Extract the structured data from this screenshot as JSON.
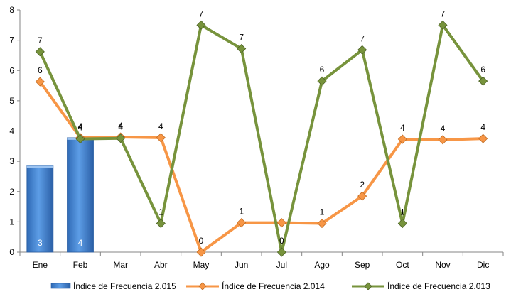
{
  "chart_data": {
    "type": "bar+line",
    "categories": [
      "Ene",
      "Feb",
      "Mar",
      "Abr",
      "May",
      "Jun",
      "Jul",
      "Ago",
      "Sep",
      "Oct",
      "Nov",
      "Dic"
    ],
    "ylim": [
      0,
      8
    ],
    "yticks": [
      "0",
      "1",
      "2",
      "3",
      "4",
      "5",
      "6",
      "7",
      "8"
    ],
    "grid": false,
    "legend_position": "bottom",
    "series": [
      {
        "name": "Índice de Frecuencia 2.015",
        "kind": "bar",
        "color": "#4f8fd6",
        "values": [
          2.85,
          3.78,
          null,
          null,
          null,
          null,
          null,
          null,
          null,
          null,
          null,
          null
        ],
        "labels": [
          "3",
          "4",
          "",
          "",
          "",
          "",
          "",
          "",
          "",
          "",
          "",
          ""
        ]
      },
      {
        "name": "Índice de Frecuencia 2.014",
        "kind": "line",
        "color": "#f79646",
        "values": [
          5.63,
          3.78,
          3.8,
          3.78,
          0.0,
          0.97,
          0.97,
          0.95,
          1.85,
          3.73,
          3.71,
          3.75
        ],
        "labels": [
          "6",
          "4",
          "4",
          "4",
          "0",
          "1",
          "",
          "1",
          "2",
          "4",
          "4",
          "4"
        ]
      },
      {
        "name": "Índice de Frecuencia 2.013",
        "kind": "line",
        "color": "#77933c",
        "values": [
          6.62,
          3.74,
          3.76,
          0.95,
          7.5,
          6.72,
          0.0,
          5.65,
          6.68,
          0.95,
          7.5,
          5.65
        ],
        "labels": [
          "7",
          "4",
          "4",
          "1",
          "7",
          "7",
          "0",
          "6",
          "7",
          "1",
          "7",
          "6"
        ]
      }
    ]
  }
}
